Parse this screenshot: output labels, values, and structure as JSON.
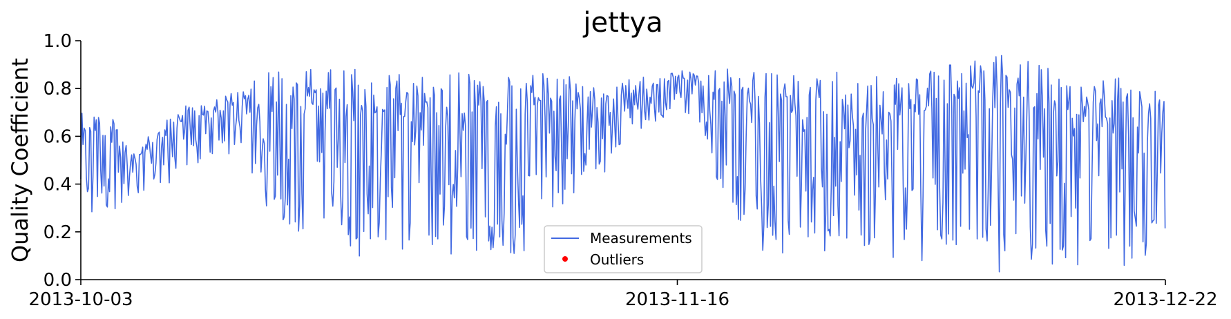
{
  "chart_data": {
    "type": "line",
    "title": "jettya",
    "xlabel": "",
    "ylabel": "Quality Coefficient",
    "ylim": [
      0.0,
      1.0
    ],
    "xlim": [
      "2013-10-03",
      "2013-12-22"
    ],
    "x_ticks": [
      "2013-10-03",
      "2013-11-16",
      "2013-12-22"
    ],
    "y_ticks": [
      "0.0",
      "0.2",
      "0.4",
      "0.6",
      "0.8",
      "1.0"
    ],
    "grid": false,
    "legend_position": "lower-center",
    "series": [
      {
        "name": "Measurements",
        "color": "#4169e1",
        "x": [
          "2013-10-03",
          "2013-10-05",
          "2013-10-07",
          "2013-10-09",
          "2013-10-11",
          "2013-10-13",
          "2013-10-15",
          "2013-10-17",
          "2013-10-19",
          "2013-10-21",
          "2013-10-23",
          "2013-10-25",
          "2013-10-27",
          "2013-10-29",
          "2013-10-31",
          "2013-11-02",
          "2013-11-04",
          "2013-11-06",
          "2013-11-08",
          "2013-11-10",
          "2013-11-12",
          "2013-11-14",
          "2013-11-16",
          "2013-11-18",
          "2013-11-20",
          "2013-11-22",
          "2013-11-24",
          "2013-11-26",
          "2013-11-28",
          "2013-11-30",
          "2013-12-02",
          "2013-12-04",
          "2013-12-06",
          "2013-12-08",
          "2013-12-10",
          "2013-12-12",
          "2013-12-14",
          "2013-12-16",
          "2013-12-18",
          "2013-12-20",
          "2013-12-22"
        ],
        "y_low": [
          0.25,
          0.22,
          0.35,
          0.38,
          0.45,
          0.5,
          0.52,
          0.25,
          0.2,
          0.1,
          0.08,
          0.07,
          0.08,
          0.06,
          0.1,
          0.08,
          0.1,
          0.15,
          0.35,
          0.4,
          0.55,
          0.65,
          0.7,
          0.6,
          0.2,
          0.12,
          0.08,
          0.1,
          0.08,
          0.1,
          0.09,
          0.08,
          0.05,
          0.05,
          0.03,
          0.03,
          0.04,
          0.05,
          0.05,
          0.03,
          0.2
        ],
        "y_high": [
          0.75,
          0.7,
          0.55,
          0.65,
          0.75,
          0.76,
          0.8,
          0.88,
          0.89,
          0.88,
          0.88,
          0.89,
          0.88,
          0.88,
          0.87,
          0.86,
          0.85,
          0.87,
          0.86,
          0.82,
          0.84,
          0.85,
          0.88,
          0.88,
          0.89,
          0.87,
          0.86,
          0.86,
          0.87,
          0.86,
          0.87,
          0.86,
          0.93,
          0.92,
          0.94,
          0.92,
          0.88,
          0.86,
          0.85,
          0.84,
          0.83
        ]
      },
      {
        "name": "Outliers",
        "color": "#ff0000",
        "x": [],
        "y": []
      }
    ]
  }
}
